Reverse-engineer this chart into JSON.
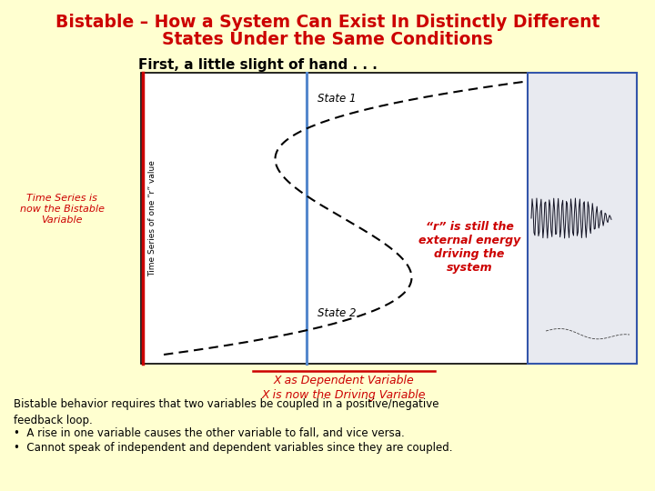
{
  "title_line1": "Bistable – How a System Can Exist In Distinctly Different",
  "title_line2": "States Under the Same Conditions",
  "title_color": "#cc0000",
  "background_color": "#ffffd0",
  "subtitle": "First, a little slight of hand . . .",
  "subtitle_color": "#000000",
  "left_label_line1": "Time Series is",
  "left_label_line2": "now the Bistable",
  "left_label_line3": "Variable",
  "left_label_color": "#cc0000",
  "yaxis_label": "Time Series of one “r” value",
  "xaxis_old_label": "X as Dependent Variable",
  "xaxis_new_label": "X is now the Driving Variable",
  "state1_label": "State 1",
  "state2_label": "State 2",
  "r_annotation": "“r” is still the\nexternal energy\ndriving the\nsystem",
  "r_annotation_color": "#cc0000",
  "bottom_text": "Bistable behavior requires that two variables be coupled in a positive/negative\nfeedback loop.",
  "bullet1": "A rise in one variable causes the other variable to fall, and vice versa.",
  "bullet2": "Cannot speak of independent and dependent variables since they are coupled.",
  "plot_box_color": "#ffffff",
  "plot_border_color": "#000000",
  "vertical_line_color": "#5588cc",
  "curve_color": "#000000",
  "xaxis_old_color": "#cc0000",
  "xaxis_new_color": "#cc0000",
  "red_vline_color": "#cc0000",
  "screen_bg": "#e8eaf0",
  "screen_border": "#3355aa"
}
